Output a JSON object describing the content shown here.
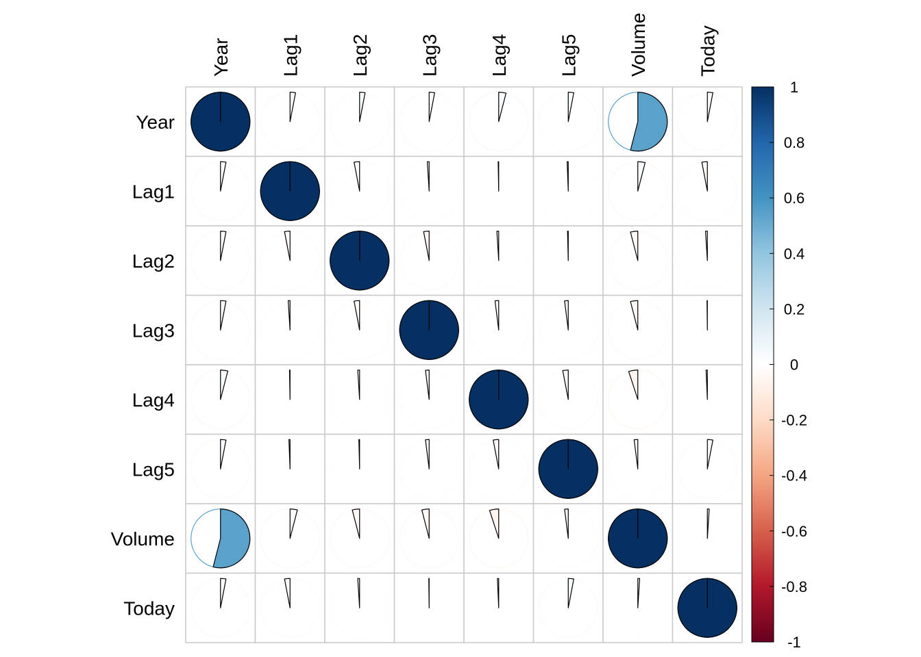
{
  "chart_data": {
    "type": "heatmap",
    "method": "pie",
    "variables": [
      "Year",
      "Lag1",
      "Lag2",
      "Lag3",
      "Lag4",
      "Lag5",
      "Volume",
      "Today"
    ],
    "matrix": [
      [
        1.0,
        0.03,
        0.03,
        0.03,
        0.04,
        0.03,
        0.54,
        0.03
      ],
      [
        0.03,
        1.0,
        -0.03,
        -0.01,
        -0.003,
        -0.006,
        0.04,
        -0.03
      ],
      [
        0.03,
        -0.03,
        1.0,
        -0.03,
        -0.01,
        -0.004,
        -0.04,
        -0.01
      ],
      [
        0.03,
        -0.01,
        -0.03,
        1.0,
        -0.02,
        -0.02,
        -0.04,
        -0.002
      ],
      [
        0.04,
        -0.003,
        -0.01,
        -0.02,
        1.0,
        -0.03,
        -0.05,
        -0.007
      ],
      [
        0.03,
        -0.006,
        -0.004,
        -0.02,
        -0.03,
        1.0,
        -0.02,
        0.03
      ],
      [
        0.54,
        0.04,
        -0.04,
        -0.04,
        -0.05,
        -0.02,
        1.0,
        0.01
      ],
      [
        0.03,
        -0.03,
        -0.01,
        -0.002,
        -0.007,
        0.03,
        0.01,
        1.0
      ]
    ],
    "colorbar": {
      "ticks": [
        "1",
        "0.8",
        "0.6",
        "0.4",
        "0.2",
        "0",
        "-0.2",
        "-0.4",
        "-0.6",
        "-0.8",
        "-1"
      ],
      "range": [
        -1,
        1
      ],
      "colors": [
        [
          -1.0,
          "#67001F"
        ],
        [
          -0.8,
          "#B2182B"
        ],
        [
          -0.6,
          "#D6604D"
        ],
        [
          -0.4,
          "#F4A582"
        ],
        [
          -0.2,
          "#FDDBC7"
        ],
        [
          0.0,
          "#FFFFFF"
        ],
        [
          0.2,
          "#D1E5F0"
        ],
        [
          0.4,
          "#92C5DE"
        ],
        [
          0.6,
          "#4393C3"
        ],
        [
          0.8,
          "#2166AC"
        ],
        [
          1.0,
          "#053061"
        ]
      ]
    },
    "grid": true
  }
}
